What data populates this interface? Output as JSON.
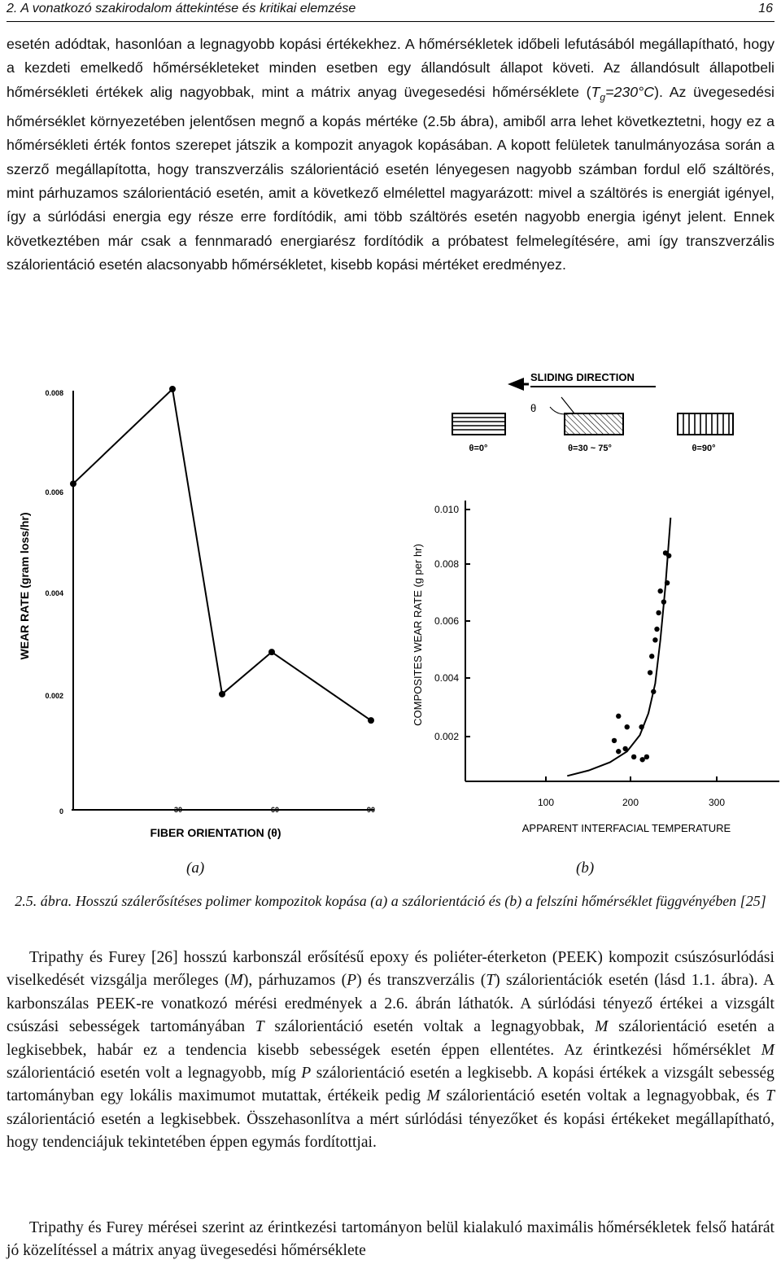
{
  "header": {
    "section": "2. A vonatkozó szakirodalom áttekintése és kritikai elemzése",
    "page": "16"
  },
  "para1": {
    "a": "esetén adódtak, hasonlóan a legnagyobb kopási értékekhez. A hőmérsékletek időbeli lefutásából megállapítható, hogy a kezdeti emelkedő hőmérsékleteket minden esetben egy állandósult állapot követi. Az állandósult állapotbeli hőmérsékleti értékek alig nagyobbak, mint a mátrix anyag üvegesedési hőmérséklete (",
    "tg_t": "T",
    "tg_g": "g",
    "tg_val": "=230°C",
    "b": "). Az üvegesedési hőmérséklet környezetében jelentősen megnő a kopás mértéke (2.5b ábra), amiből arra lehet következtetni, hogy ez a hőmérsékleti érték fontos szerepet játszik a kompozit anyagok kopásában. A kopott felületek tanulmányozása során a szerző megállapította, hogy transzverzális szálorientáció esetén lényegesen nagyobb számban fordul elő száltörés, mint párhuzamos szálorientáció esetén, amit a következő elmélettel magyarázott: mivel a száltörés is energiát igényel, így a súrlódási energia egy része erre fordítódik, ami több száltörés esetén nagyobb energia igényt jelent. Ennek következtében már csak a fennmaradó energiarész fordítódik a próbatest felmelegítésére, ami így transzverzális szálorientáció esetén alacsonyabb hőmérsékletet, kisebb kopási mértéket eredményez."
  },
  "figure": {
    "a": {
      "ylabel": "WEAR RATE (gram loss/hr)",
      "xlabel": "FIBER ORIENTATION (θ)",
      "yticks": [
        "0.008",
        "0.006",
        "0.004",
        "0.002",
        "0"
      ],
      "xticks": [
        "30",
        "60",
        "90"
      ]
    },
    "b": {
      "ylabel": "COMPOSITES WEAR RATE (g per hr)",
      "xlabel": "APPARENT INTERFACIAL TEMPERATURE",
      "yticks": [
        "0.010",
        "0.008",
        "0.006",
        "0.004",
        "0.002"
      ],
      "xticks": [
        "100",
        "200",
        "300"
      ]
    },
    "schematic": {
      "direction": "SLIDING DIRECTION",
      "theta": "θ",
      "labels": [
        "θ=0°",
        "θ=30 ~ 75°",
        "θ=90°"
      ]
    },
    "sub_a": "(a)",
    "sub_b": "(b)",
    "caption_label": "2.5. ábra.",
    "caption_text": "Hosszú szálerősítéses polimer kompozitok kopása (a) a szálorientáció és (b) a felszíni hőmérséklet függvényében [25]"
  },
  "chart_data": [
    {
      "type": "line",
      "xlabel": "FIBER ORIENTATION (θ)",
      "ylabel": "WEAR RATE (gram loss/hr)",
      "x": [
        0,
        30,
        45,
        60,
        90
      ],
      "y": [
        0.0062,
        0.008,
        0.0022,
        0.003,
        0.0017
      ],
      "xlim": [
        0,
        90
      ],
      "ylim": [
        0,
        0.008
      ]
    },
    {
      "type": "scatter",
      "xlabel": "APPARENT INTERFACIAL TEMPERATURE",
      "ylabel": "COMPOSITES WEAR RATE (g per hr)",
      "points": [
        [
          185,
          0.0024
        ],
        [
          195,
          0.002
        ],
        [
          180,
          0.0015
        ],
        [
          193,
          0.0012
        ],
        [
          185,
          0.0011
        ],
        [
          212,
          0.002
        ],
        [
          203,
          0.0009
        ],
        [
          213,
          0.0008
        ],
        [
          218,
          0.0009
        ],
        [
          222,
          0.004
        ],
        [
          224,
          0.0046
        ],
        [
          228,
          0.0052
        ],
        [
          230,
          0.0056
        ],
        [
          226,
          0.0033
        ],
        [
          234,
          0.007
        ],
        [
          242,
          0.0073
        ],
        [
          240,
          0.0084
        ],
        [
          244,
          0.0083
        ],
        [
          238,
          0.0066
        ],
        [
          232,
          0.0062
        ]
      ],
      "curve": {
        "x": [
          125,
          150,
          175,
          195,
          210,
          220,
          228,
          234,
          240,
          246
        ],
        "y": [
          0.0002,
          0.0004,
          0.0007,
          0.0011,
          0.0017,
          0.0025,
          0.0036,
          0.0052,
          0.0072,
          0.0097
        ]
      },
      "xlim": [
        80,
        330
      ],
      "ylim": [
        0,
        0.011
      ]
    }
  ],
  "para2": {
    "a": "Tripathy és Furey [26] hosszú karbonszál erősítésű epoxy és poliéter-éterketon (PEEK) kompozit csúszósurlódási viselkedését vizsgálja merőleges (",
    "m": "M",
    "b": "), párhuzamos (",
    "p": "P",
    "c": ") és transzverzális (",
    "t": "T",
    "d": ") szálorientációk esetén (lásd 1.1. ábra). A karbonszálas PEEK-re vonatkozó mérési eredmények a 2.6. ábrán láthatók. A súrlódási tényező értékei a vizsgált csúszási sebességek tartományában ",
    "t2": "T",
    "e": " szálorientáció esetén voltak a legnagyobbak, ",
    "m2": "M",
    "f": " szálorientáció esetén a legkisebbek, habár ez a tendencia kisebb sebességek esetén éppen ellentétes. Az érintkezési hőmérséklet ",
    "m3": "M",
    "g": " szálorientáció esetén volt a legnagyobb, míg ",
    "p2": "P",
    "h": " szálorientáció esetén a legkisebb. A kopási értékek a vizsgált sebesség tartományban egy lokális maximumot mutattak, értékeik pedig ",
    "m4": "M",
    "i": " szálorientáció esetén voltak a legnagyobbak, és ",
    "t3": "T",
    "j": " szálorientáció esetén a legkisebbek. Összehasonlítva a mért súrlódási tényezőket és kopási értékeket megállapítható, hogy tendenciájuk tekintetében éppen egymás fordítottjai."
  },
  "para3": {
    "text": "Tripathy és Furey mérései szerint az érintkezési tartományon belül kialakuló maximális hőmérsékletek felső határát jó közelítéssel a mátrix anyag üvegesedési hőmérséklete"
  }
}
